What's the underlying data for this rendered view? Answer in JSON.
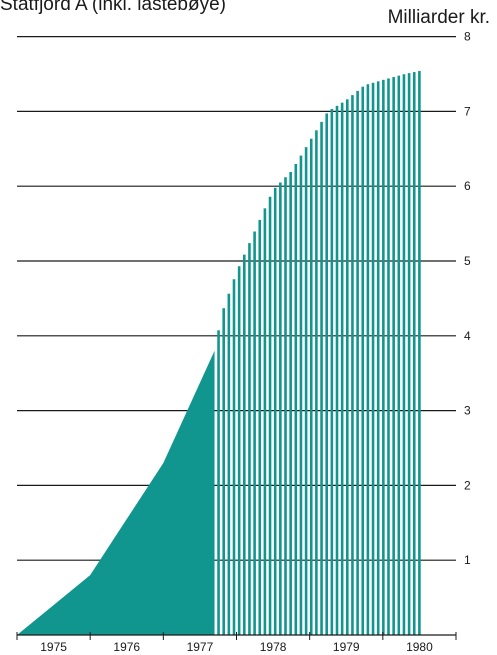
{
  "chart_data": {
    "type": "area",
    "title": "Statfjord A (inkl. lastebøye)",
    "unit_label": "Milliarder kr.",
    "ylim": [
      0,
      8
    ],
    "y_ticks": [
      1,
      2,
      3,
      4,
      5,
      6,
      7,
      8
    ],
    "x_categories": [
      "1975",
      "1976",
      "1977",
      "1978",
      "1979",
      "1980"
    ],
    "xlim": [
      1975,
      1981
    ],
    "grid": true,
    "colors": {
      "fill": "#11968f",
      "grid": "#1a1a1a"
    },
    "series": [
      {
        "style": "solid",
        "x": [
          1975,
          1975.5,
          1976,
          1976.5,
          1977,
          1977.7
        ],
        "y": [
          0,
          0.4,
          0.8,
          1.55,
          2.3,
          3.8
        ]
      },
      {
        "style": "hatched",
        "x": [
          1977.7,
          1977.8,
          1978,
          1978.25,
          1978.5,
          1978.75,
          1979,
          1979.25,
          1979.5,
          1979.75,
          1980,
          1980.3,
          1980.55
        ],
        "y": [
          3.8,
          4.3,
          4.85,
          5.4,
          5.95,
          6.2,
          6.6,
          7.0,
          7.15,
          7.35,
          7.42,
          7.5,
          7.55
        ]
      }
    ]
  }
}
